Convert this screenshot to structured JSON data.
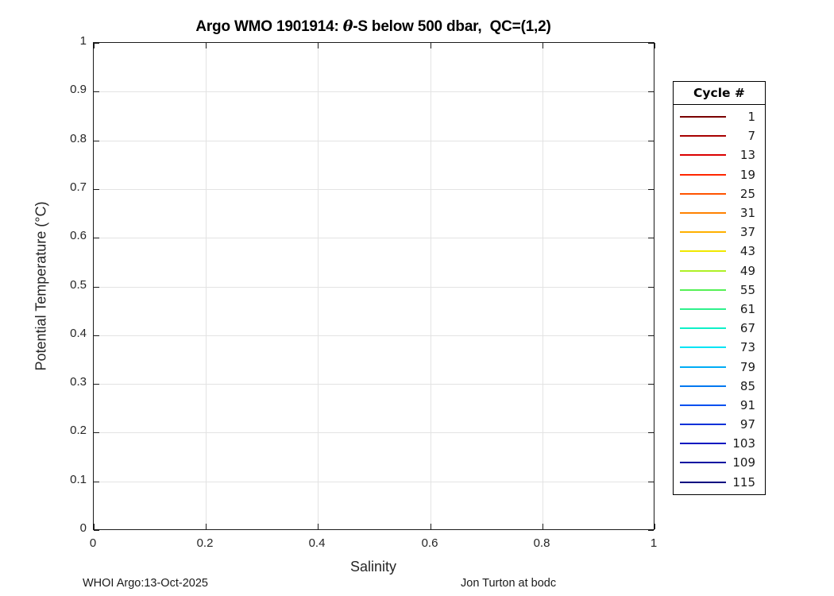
{
  "figure": {
    "title": {
      "prefix": "Argo WMO 1901914: ",
      "theta": "θ",
      "suffix": "-S below 500 dbar,  QC=(1,2)"
    },
    "xlabel": "Salinity",
    "ylabel": "Potential Temperature (°C)",
    "footer_left": "WHOI Argo:13-Oct-2025",
    "footer_right": "Jon Turton at bodc"
  },
  "chart_data": {
    "type": "line",
    "title": "Argo WMO 1901914: θ-S below 500 dbar,  QC=(1,2)",
    "xlabel": "Salinity",
    "ylabel": "Potential Temperature (°C)",
    "xlim": [
      0,
      1
    ],
    "ylim": [
      0,
      1
    ],
    "xticks": [
      0,
      0.2,
      0.4,
      0.6,
      0.8,
      1
    ],
    "xtick_labels": [
      "0",
      "0.2",
      "0.4",
      "0.6",
      "0.8",
      "1"
    ],
    "yticks": [
      0,
      0.1,
      0.2,
      0.3,
      0.4,
      0.5,
      0.6,
      0.7,
      0.8,
      0.9,
      1
    ],
    "ytick_labels": [
      "0",
      "0.1",
      "0.2",
      "0.3",
      "0.4",
      "0.5",
      "0.6",
      "0.7",
      "0.8",
      "0.9",
      "1"
    ],
    "grid": true,
    "series": [],
    "note": "Axes are empty: no data points are plotted inside the plot box.",
    "legend": {
      "title": "Cycle #",
      "position": "outside-right",
      "entries": [
        {
          "label": "1",
          "color": "#7a0000"
        },
        {
          "label": "7",
          "color": "#a80000"
        },
        {
          "label": "13",
          "color": "#db0000"
        },
        {
          "label": "19",
          "color": "#ff2600"
        },
        {
          "label": "25",
          "color": "#ff5400"
        },
        {
          "label": "31",
          "color": "#ff8200"
        },
        {
          "label": "37",
          "color": "#ffb000"
        },
        {
          "label": "43",
          "color": "#f0e800"
        },
        {
          "label": "49",
          "color": "#aef026"
        },
        {
          "label": "55",
          "color": "#55f055"
        },
        {
          "label": "61",
          "color": "#2ef08c"
        },
        {
          "label": "67",
          "color": "#0ff0c8"
        },
        {
          "label": "73",
          "color": "#00e4f5"
        },
        {
          "label": "79",
          "color": "#00acf5"
        },
        {
          "label": "85",
          "color": "#0078f0"
        },
        {
          "label": "91",
          "color": "#0050f0"
        },
        {
          "label": "97",
          "color": "#0030d8"
        },
        {
          "label": "103",
          "color": "#0018c0"
        },
        {
          "label": "109",
          "color": "#000ca0"
        },
        {
          "label": "115",
          "color": "#000080"
        }
      ]
    }
  }
}
